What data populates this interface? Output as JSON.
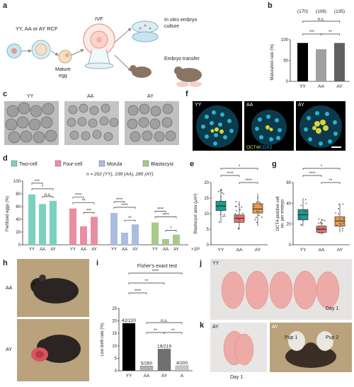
{
  "panels": {
    "a": "a",
    "b": "b",
    "c": "c",
    "d": "d",
    "e": "e",
    "f": "f",
    "g": "g",
    "h": "h",
    "i": "i",
    "j": "j",
    "k": "k"
  },
  "panel_a": {
    "source": "YY, AA or AY RCF",
    "mature": "Mature\negg",
    "ivf": "IVF",
    "culture": "In vitro embryo\nculture",
    "transfer": "Embryo transfer"
  },
  "panel_c": {
    "labels": [
      "YY",
      "AA",
      "AY"
    ]
  },
  "panel_f": {
    "labels": [
      "YY",
      "AA",
      "AY"
    ],
    "stain_a": "OCT4",
    "stain_sep": "/",
    "stain_b": "CDX2"
  },
  "panel_h": {
    "labels": [
      "AA",
      "AY"
    ]
  },
  "panel_j": {
    "label": "YY",
    "day": "Day 1"
  },
  "panel_k": {
    "label1": "AY",
    "label2": "AY",
    "day1": "Day 1",
    "day2": "Day 16",
    "pup1": "Pup 1",
    "pup2": "Pup 2"
  },
  "colors": {
    "yy": "#1a9d8f",
    "aa": "#e8736c",
    "ay": "#e89a4f",
    "two_cell": "#7cd0c0",
    "four_cell": "#e88ea0",
    "morula": "#aabde0",
    "blastocyst": "#a8c98a"
  },
  "chart_data": [
    {
      "id": "b",
      "type": "bar",
      "categories": [
        "YY",
        "AA",
        "AY"
      ],
      "values": [
        92,
        77,
        92
      ],
      "counts": [
        "(170)",
        "(108)",
        "(135)"
      ],
      "ylabel": "Maturation rate (%)",
      "ylim": [
        0,
        100
      ],
      "yticks": [
        "0",
        "50",
        "100"
      ],
      "significance": [
        "***",
        "**",
        "n.s."
      ],
      "colors": [
        "#000000",
        "#a0a0a0",
        "#606060"
      ]
    },
    {
      "id": "d",
      "type": "bar",
      "groups": [
        "Two-cell",
        "Four-cell",
        "Morula",
        "Blastocyst"
      ],
      "categories": [
        "YY",
        "AA",
        "AY"
      ],
      "series": [
        {
          "name": "Two-cell",
          "values": [
            79,
            64,
            69
          ]
        },
        {
          "name": "Four-cell",
          "values": [
            57,
            29,
            44
          ]
        },
        {
          "name": "Morula",
          "values": [
            50,
            19,
            32
          ]
        },
        {
          "name": "Blastocyst",
          "values": [
            35,
            9,
            16
          ]
        }
      ],
      "ylabel": "Fertilized eggs (%)",
      "ylim": [
        0,
        100
      ],
      "yticks": [
        "0",
        "20",
        "40",
        "60",
        "80",
        "100"
      ],
      "note": "n = 202 (YY), 239 (AA), 285 (AY)",
      "significance": [
        [
          "***",
          "*",
          "n.s."
        ],
        [
          "****",
          "**",
          "***"
        ],
        [
          "****",
          "****",
          "**"
        ],
        [
          "****",
          "****",
          "*"
        ]
      ]
    },
    {
      "id": "e",
      "type": "box",
      "categories": [
        "YY",
        "AA",
        "AY"
      ],
      "medians": [
        12.5,
        8.5,
        11.5
      ],
      "q1": [
        11,
        7.2,
        10.2
      ],
      "q3": [
        14,
        9.6,
        13.2
      ],
      "whisker_low": [
        7,
        5,
        6
      ],
      "whisker_high": [
        18,
        14,
        16.5
      ],
      "ylabel": "Blastocyst area (μm²)",
      "ylim": [
        0,
        20
      ],
      "yticks": [
        "0",
        "5",
        "10",
        "15",
        "20"
      ],
      "scale": "×10³",
      "significance": [
        "****",
        "****",
        "*"
      ]
    },
    {
      "id": "g",
      "type": "box",
      "categories": [
        "YY",
        "AA",
        "AY"
      ],
      "medians": [
        29,
        15,
        23
      ],
      "q1": [
        24,
        12,
        18
      ],
      "q3": [
        34,
        18,
        27
      ],
      "whisker_low": [
        18,
        10,
        12
      ],
      "whisker_high": [
        45,
        25,
        40
      ],
      "ylabel": "OCT4-positive cell\nno. per embryo",
      "ylim": [
        0,
        60
      ],
      "yticks": [
        "0",
        "20",
        "40",
        "60"
      ],
      "significance": [
        "****",
        "**",
        "*"
      ]
    },
    {
      "id": "i",
      "type": "bar",
      "categories": [
        "YY",
        "AA",
        "AY",
        "A"
      ],
      "values": [
        19.1,
        1.9,
        8.7,
        2.0
      ],
      "data_labels": [
        "42/220",
        "5/260",
        "19/219",
        "4/200"
      ],
      "title": "Fisher's exact test",
      "ylabel": "Live birth rate (%)",
      "ylim": [
        0,
        25
      ],
      "yticks": [
        "0",
        "5",
        "10",
        "15",
        "20",
        "25"
      ],
      "significance": [
        "****",
        "****",
        "**",
        "**",
        "**",
        "n.s."
      ],
      "colors": [
        "#000000",
        "#b0b0b0",
        "#707070",
        "#c8c8c8"
      ]
    }
  ]
}
